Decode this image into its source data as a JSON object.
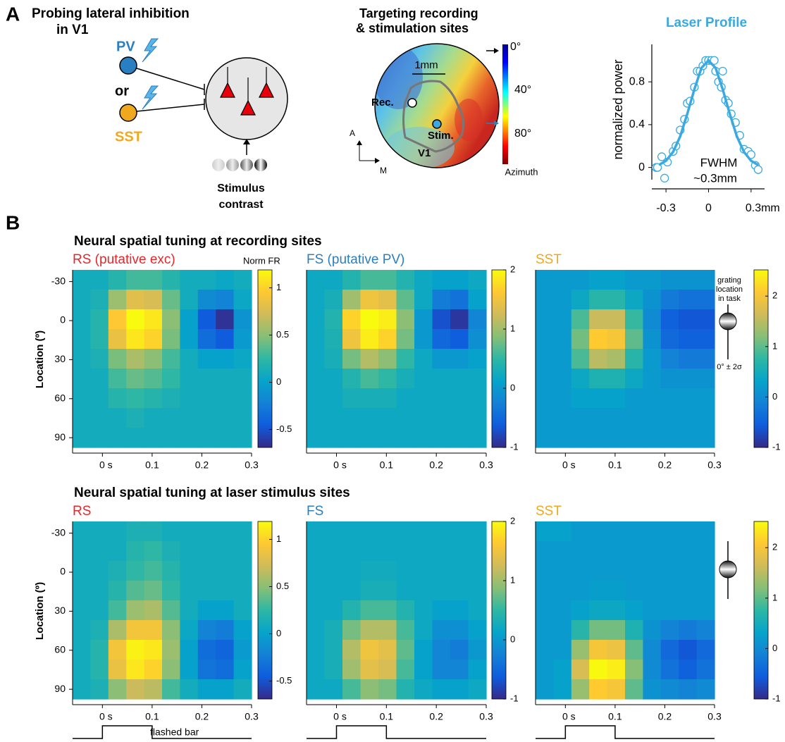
{
  "panel_a": {
    "label": "A",
    "schematic": {
      "title": [
        "Probing lateral inhibition",
        "in V1"
      ],
      "pv": "PV",
      "or": "or",
      "sst": "SST",
      "stimulus": [
        "Stimulus",
        "contrast"
      ]
    },
    "map": {
      "title": [
        "Targeting recording",
        "& stimulation sites"
      ],
      "scale_bar": "1mm",
      "rec": "Rec.",
      "stim": "Stim.",
      "area": "V1",
      "axis_a": "A",
      "axis_m": "M",
      "colorbar_ticks": [
        "0°",
        "40°",
        "80°"
      ],
      "colorbar_label": "Azimuth"
    }
  },
  "panel_b": {
    "label": "B",
    "rows": [
      {
        "title": "Neural spatial tuning at recording sites"
      },
      {
        "title": "Neural spatial tuning at laser stimulus sites"
      }
    ],
    "y_label": "Location (º)",
    "colorbar_label": "Norm FR",
    "grating": {
      "label": [
        "grating",
        "location",
        "in task"
      ],
      "range": "0° ± 2σ"
    },
    "stimulus_label": "flashed bar"
  },
  "chart_data": [
    {
      "type": "scatter",
      "title": "Laser Profile",
      "title_color": "#3aa9e0",
      "y_label": "normalized power",
      "xlim": [
        -0.4,
        0.42
      ],
      "ylim": [
        -0.2,
        1.15
      ],
      "xticks": [
        -0.3,
        0,
        {
          "value": 0.3,
          "label": "0.3mm"
        }
      ],
      "yticks": [
        0,
        0.4,
        0.8
      ],
      "annotation": [
        "FWHM",
        "~0.3mm"
      ],
      "series": [
        {
          "color": "#3aa9e0",
          "marker": "circle",
          "x": [
            -0.37,
            -0.36,
            -0.33,
            -0.31,
            -0.29,
            -0.25,
            -0.23,
            -0.2,
            -0.17,
            -0.15,
            -0.13,
            -0.1,
            -0.08,
            -0.06,
            -0.04,
            -0.02,
            0,
            0.02,
            0.04,
            0.05,
            0.07,
            0.09,
            0.1,
            0.12,
            0.14,
            0.16,
            0.19,
            0.22,
            0.25,
            0.28,
            0.3,
            0.33,
            0.35
          ],
          "values": [
            0.0,
            0.0,
            0.1,
            -0.1,
            0.05,
            0.15,
            0.2,
            0.35,
            0.45,
            0.6,
            0.62,
            0.75,
            0.9,
            0.9,
            0.95,
            1.0,
            1.0,
            1.0,
            1.0,
            0.9,
            0.8,
            0.75,
            0.9,
            0.63,
            0.6,
            0.5,
            0.42,
            0.3,
            0.17,
            0.15,
            0.12,
            0.02,
            -0.02
          ]
        },
        {
          "color": "#3aa9e0",
          "marker": "line",
          "x": [
            -0.35,
            -0.3,
            -0.25,
            -0.2,
            -0.15,
            -0.1,
            -0.05,
            0,
            0.05,
            0.1,
            0.15,
            0.2,
            0.25,
            0.3,
            0.35
          ],
          "values": [
            0.023,
            0.062,
            0.145,
            0.29,
            0.5,
            0.73,
            0.93,
            1.0,
            0.93,
            0.73,
            0.5,
            0.29,
            0.145,
            0.062,
            0.023
          ]
        }
      ]
    },
    {
      "type": "heatmap",
      "title": "RS (putative exc)",
      "title_color": "#e8262a",
      "colormap": "parula",
      "y_inverted": true,
      "xlim": [
        -0.06,
        0.3
      ],
      "ylim": [
        -39,
        97.5
      ],
      "xticks": [
        {
          "value": 0,
          "label": "0 s"
        },
        0.1,
        0.2,
        0.3
      ],
      "yticks": [
        -30,
        0,
        30,
        60,
        90
      ],
      "clim": [
        -0.69,
        1.19
      ],
      "cbar_ticks": [
        -0.5,
        0,
        0.5,
        1
      ],
      "z": [
        [
          0.1,
          0.1,
          0.2,
          0.3,
          0.3,
          0.2,
          0.1,
          0.1,
          0.05,
          0.1
        ],
        [
          0.1,
          0.15,
          0.55,
          0.8,
          0.75,
          0.4,
          0.1,
          -0.15,
          -0.2,
          0.05
        ],
        [
          0.1,
          0.2,
          0.95,
          1.19,
          1.1,
          0.5,
          0.0,
          -0.45,
          -0.65,
          -0.1
        ],
        [
          0.1,
          0.2,
          0.85,
          1.1,
          1.0,
          0.45,
          0.0,
          -0.35,
          -0.45,
          -0.05
        ],
        [
          0.1,
          0.15,
          0.45,
          0.6,
          0.5,
          0.3,
          0.1,
          0.0,
          0.0,
          0.05
        ],
        [
          0.1,
          0.1,
          0.3,
          0.4,
          0.35,
          0.25,
          0.1,
          0.1,
          0.1,
          0.1
        ],
        [
          0.1,
          0.1,
          0.2,
          0.25,
          0.2,
          0.15,
          0.1,
          0.1,
          0.1,
          0.1
        ],
        [
          0.1,
          0.1,
          0.1,
          0.15,
          0.1,
          0.1,
          0.1,
          0.1,
          0.1,
          0.1
        ],
        [
          0.1,
          0.1,
          0.1,
          0.1,
          0.1,
          0.1,
          0.1,
          0.1,
          0.1,
          0.1
        ]
      ]
    },
    {
      "type": "heatmap",
      "title": "FS (putative PV)",
      "title_color": "#2a7fc1",
      "colormap": "parula",
      "y_inverted": true,
      "xlim": [
        -0.06,
        0.3
      ],
      "ylim": [
        -39,
        97.5
      ],
      "xticks": [
        {
          "value": 0,
          "label": "0 s"
        },
        0.1,
        0.2,
        0.3
      ],
      "clim": [
        -1,
        2
      ],
      "cbar_ticks": [
        -1,
        0,
        1,
        2
      ],
      "z": [
        [
          0.2,
          0.2,
          0.4,
          0.6,
          0.6,
          0.4,
          0.2,
          0.1,
          0.1,
          0.2
        ],
        [
          0.2,
          0.3,
          1.0,
          1.5,
          1.4,
          0.7,
          0.2,
          -0.3,
          -0.4,
          0.1
        ],
        [
          0.2,
          0.4,
          1.7,
          2.0,
          1.9,
          0.9,
          0.0,
          -0.7,
          -0.9,
          -0.2
        ],
        [
          0.2,
          0.35,
          1.5,
          1.9,
          1.7,
          0.8,
          0.0,
          -0.5,
          -0.6,
          -0.1
        ],
        [
          0.2,
          0.3,
          0.8,
          1.1,
          0.9,
          0.5,
          0.2,
          0.0,
          0.0,
          0.1
        ],
        [
          0.2,
          0.2,
          0.4,
          0.6,
          0.5,
          0.3,
          0.2,
          0.2,
          0.2,
          0.2
        ],
        [
          0.2,
          0.2,
          0.3,
          0.3,
          0.3,
          0.2,
          0.2,
          0.2,
          0.2,
          0.2
        ],
        [
          0.2,
          0.2,
          0.2,
          0.2,
          0.2,
          0.2,
          0.2,
          0.2,
          0.2,
          0.2
        ],
        [
          0.2,
          0.2,
          0.2,
          0.2,
          0.2,
          0.2,
          0.2,
          0.2,
          0.2,
          0.2
        ]
      ]
    },
    {
      "type": "heatmap",
      "title": "SST",
      "title_color": "#f0a81e",
      "colormap": "parula",
      "y_inverted": true,
      "xlim": [
        -0.06,
        0.3
      ],
      "ylim": [
        -39,
        97.5
      ],
      "xticks": [
        {
          "value": 0,
          "label": "0 s"
        },
        0.1,
        0.2,
        0.3
      ],
      "clim": [
        -1,
        2.52
      ],
      "cbar_ticks": [
        -1,
        0,
        1,
        2
      ],
      "z": [
        [
          0.2,
          0.2,
          0.2,
          0.3,
          0.3,
          0.2,
          0.2,
          0.1,
          0.1,
          0.1
        ],
        [
          0.2,
          0.2,
          0.4,
          0.7,
          0.7,
          0.4,
          0.1,
          -0.2,
          -0.3,
          -0.3
        ],
        [
          0.2,
          0.2,
          0.9,
          1.6,
          1.6,
          0.8,
          0.0,
          -0.5,
          -0.6,
          -0.6
        ],
        [
          0.2,
          0.2,
          1.1,
          2.1,
          2.0,
          1.0,
          0.1,
          -0.4,
          -0.5,
          -0.5
        ],
        [
          0.2,
          0.2,
          0.9,
          1.5,
          1.4,
          0.7,
          0.2,
          -0.1,
          -0.2,
          -0.2
        ],
        [
          0.2,
          0.2,
          0.4,
          0.6,
          0.6,
          0.4,
          0.2,
          0.1,
          0.1,
          0.1
        ],
        [
          0.2,
          0.2,
          0.3,
          0.3,
          0.3,
          0.2,
          0.2,
          0.2,
          0.2,
          0.2
        ],
        [
          0.2,
          0.2,
          0.2,
          0.2,
          0.2,
          0.2,
          0.2,
          0.2,
          0.2,
          0.2
        ],
        [
          0.2,
          0.2,
          0.2,
          0.2,
          0.2,
          0.2,
          0.2,
          0.2,
          0.2,
          0.2
        ]
      ]
    },
    {
      "type": "heatmap",
      "title": "RS",
      "title_color": "#e8262a",
      "colormap": "parula",
      "y_inverted": true,
      "xlim": [
        -0.06,
        0.3
      ],
      "ylim": [
        -39,
        97.5
      ],
      "xticks": [
        {
          "value": 0,
          "label": "0 s"
        },
        0.1,
        0.2,
        0.3
      ],
      "yticks": [
        -30,
        0,
        30,
        60,
        90
      ],
      "clim": [
        -0.69,
        1.19
      ],
      "cbar_ticks": [
        -0.5,
        0,
        0.5,
        1
      ],
      "stimulus": [
        0,
        0.1
      ],
      "z": [
        [
          0.1,
          0.1,
          0.1,
          0.15,
          0.15,
          0.1,
          0.1,
          0.1,
          0.1,
          0.1
        ],
        [
          0.1,
          0.1,
          0.1,
          0.2,
          0.25,
          0.15,
          0.1,
          0.1,
          0.1,
          0.1
        ],
        [
          0.1,
          0.1,
          0.15,
          0.25,
          0.3,
          0.2,
          0.1,
          0.1,
          0.1,
          0.1
        ],
        [
          0.1,
          0.1,
          0.2,
          0.35,
          0.4,
          0.25,
          0.1,
          0.1,
          0.1,
          0.1
        ],
        [
          0.1,
          0.1,
          0.3,
          0.55,
          0.6,
          0.35,
          0.1,
          0.0,
          0.0,
          0.1
        ],
        [
          0.1,
          0.15,
          0.6,
          0.9,
          0.9,
          0.5,
          0.05,
          -0.2,
          -0.25,
          0.0
        ],
        [
          0.1,
          0.2,
          0.9,
          1.15,
          1.1,
          0.55,
          0.0,
          -0.35,
          -0.4,
          -0.05
        ],
        [
          0.1,
          0.2,
          0.85,
          1.1,
          1.0,
          0.5,
          0.0,
          -0.3,
          -0.35,
          0.0
        ],
        [
          0.1,
          0.15,
          0.5,
          0.7,
          0.65,
          0.3,
          0.1,
          0.0,
          0.0,
          0.1
        ]
      ]
    },
    {
      "type": "heatmap",
      "title": "FS",
      "title_color": "#2a7fc1",
      "colormap": "parula",
      "y_inverted": true,
      "xlim": [
        -0.06,
        0.3
      ],
      "ylim": [
        -39,
        97.5
      ],
      "xticks": [
        {
          "value": 0,
          "label": "0 s"
        },
        0.1,
        0.2,
        0.3
      ],
      "clim": [
        -1,
        2
      ],
      "cbar_ticks": [
        -1,
        0,
        1,
        2
      ],
      "stimulus": [
        0,
        0.1
      ],
      "z": [
        [
          0.2,
          0.2,
          0.2,
          0.2,
          0.2,
          0.2,
          0.2,
          0.2,
          0.2,
          0.2
        ],
        [
          0.2,
          0.2,
          0.2,
          0.2,
          0.2,
          0.2,
          0.2,
          0.2,
          0.2,
          0.2
        ],
        [
          0.2,
          0.2,
          0.2,
          0.25,
          0.25,
          0.2,
          0.2,
          0.2,
          0.2,
          0.2
        ],
        [
          0.2,
          0.2,
          0.2,
          0.3,
          0.3,
          0.2,
          0.2,
          0.2,
          0.2,
          0.2
        ],
        [
          0.2,
          0.2,
          0.4,
          0.6,
          0.6,
          0.4,
          0.2,
          0.1,
          0.1,
          0.2
        ],
        [
          0.2,
          0.3,
          0.8,
          1.1,
          1.1,
          0.6,
          0.2,
          -0.1,
          -0.1,
          0.1
        ],
        [
          0.2,
          0.3,
          1.1,
          1.5,
          1.4,
          0.7,
          0.1,
          -0.2,
          -0.3,
          0.0
        ],
        [
          0.2,
          0.3,
          1.0,
          1.4,
          1.3,
          0.6,
          0.1,
          -0.2,
          -0.2,
          0.1
        ],
        [
          0.2,
          0.2,
          0.6,
          0.9,
          0.8,
          0.4,
          0.2,
          0.1,
          0.1,
          0.2
        ]
      ]
    },
    {
      "type": "heatmap",
      "title": "SST",
      "title_color": "#f0a81e",
      "colormap": "parula",
      "y_inverted": true,
      "xlim": [
        -0.06,
        0.3
      ],
      "ylim": [
        -39,
        97.5
      ],
      "xticks": [
        {
          "value": 0,
          "label": "0 s"
        },
        0.1,
        0.2,
        0.3
      ],
      "clim": [
        -1,
        2.52
      ],
      "cbar_ticks": [
        -1,
        0,
        1,
        2
      ],
      "stimulus": [
        0,
        0.1
      ],
      "z": [
        [
          0.3,
          0.3,
          0.2,
          0.2,
          0.2,
          0.2,
          0.2,
          0.2,
          0.2,
          0.2
        ],
        [
          0.2,
          0.2,
          0.2,
          0.2,
          0.2,
          0.2,
          0.2,
          0.2,
          0.2,
          0.2
        ],
        [
          0.2,
          0.2,
          0.2,
          0.2,
          0.2,
          0.2,
          0.2,
          0.2,
          0.2,
          0.2
        ],
        [
          0.2,
          0.2,
          0.2,
          0.25,
          0.25,
          0.2,
          0.2,
          0.2,
          0.2,
          0.2
        ],
        [
          0.2,
          0.2,
          0.3,
          0.4,
          0.4,
          0.3,
          0.2,
          0.2,
          0.2,
          0.2
        ],
        [
          0.2,
          0.2,
          0.7,
          1.1,
          1.1,
          0.6,
          0.1,
          -0.1,
          -0.2,
          -0.1
        ],
        [
          0.2,
          0.2,
          1.3,
          2.0,
          1.9,
          1.0,
          0.0,
          -0.4,
          -0.6,
          -0.4
        ],
        [
          0.2,
          0.3,
          1.7,
          2.5,
          2.4,
          1.2,
          0.0,
          -0.3,
          -0.5,
          -0.3
        ],
        [
          0.2,
          0.3,
          1.3,
          2.1,
          2.0,
          1.0,
          0.1,
          0.0,
          -0.1,
          0.0
        ]
      ]
    }
  ]
}
